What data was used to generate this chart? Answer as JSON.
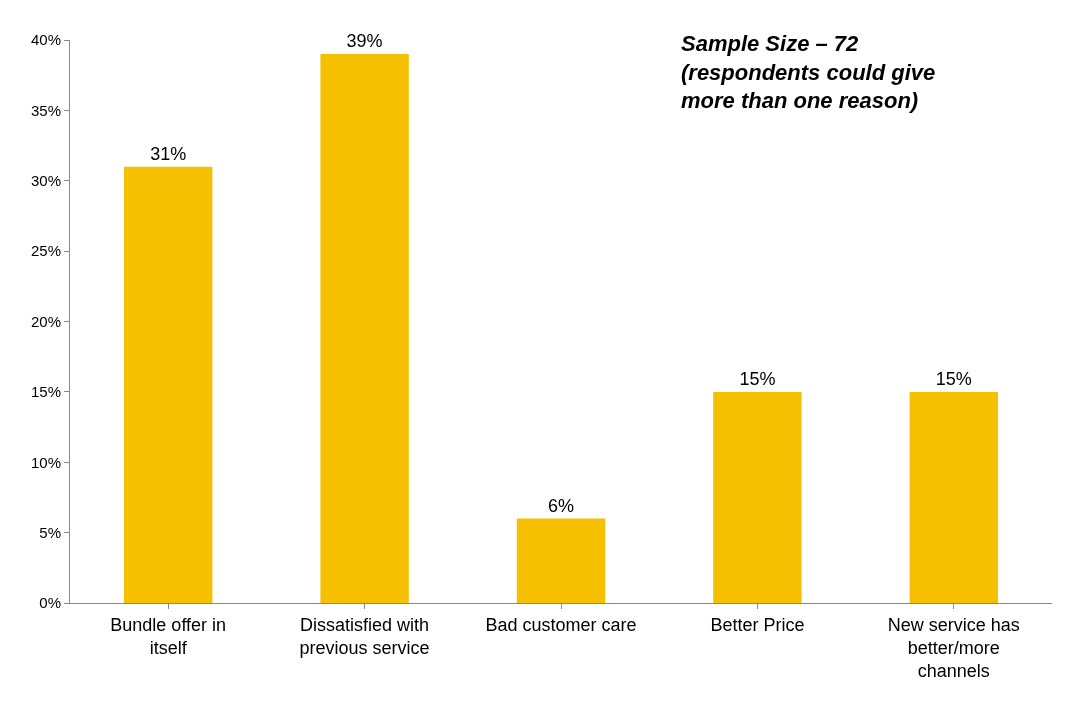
{
  "chart_data": {
    "type": "bar",
    "categories": [
      "Bundle offer in itself",
      "Dissatisfied with previous service",
      "Bad customer care",
      "Better Price",
      "New service has better/more channels"
    ],
    "values": [
      31,
      39,
      6,
      15,
      15
    ],
    "value_labels": [
      "31%",
      "39%",
      "6%",
      "15%",
      "15%"
    ],
    "color": "#f5c000",
    "ylim": [
      0,
      40
    ],
    "yticks": [
      {
        "value": 0,
        "label": "0%"
      },
      {
        "value": 5,
        "label": "5%"
      },
      {
        "value": 10,
        "label": "10%"
      },
      {
        "value": 15,
        "label": "15%"
      },
      {
        "value": 20,
        "label": "20%"
      },
      {
        "value": 25,
        "label": "25%"
      },
      {
        "value": 30,
        "label": "30%"
      },
      {
        "value": 35,
        "label": "35%"
      },
      {
        "value": 40,
        "label": "40%"
      }
    ],
    "grid": false,
    "annotations": [
      "Sample Size – 72\n(respondents could give\nmore than one reason)"
    ]
  }
}
